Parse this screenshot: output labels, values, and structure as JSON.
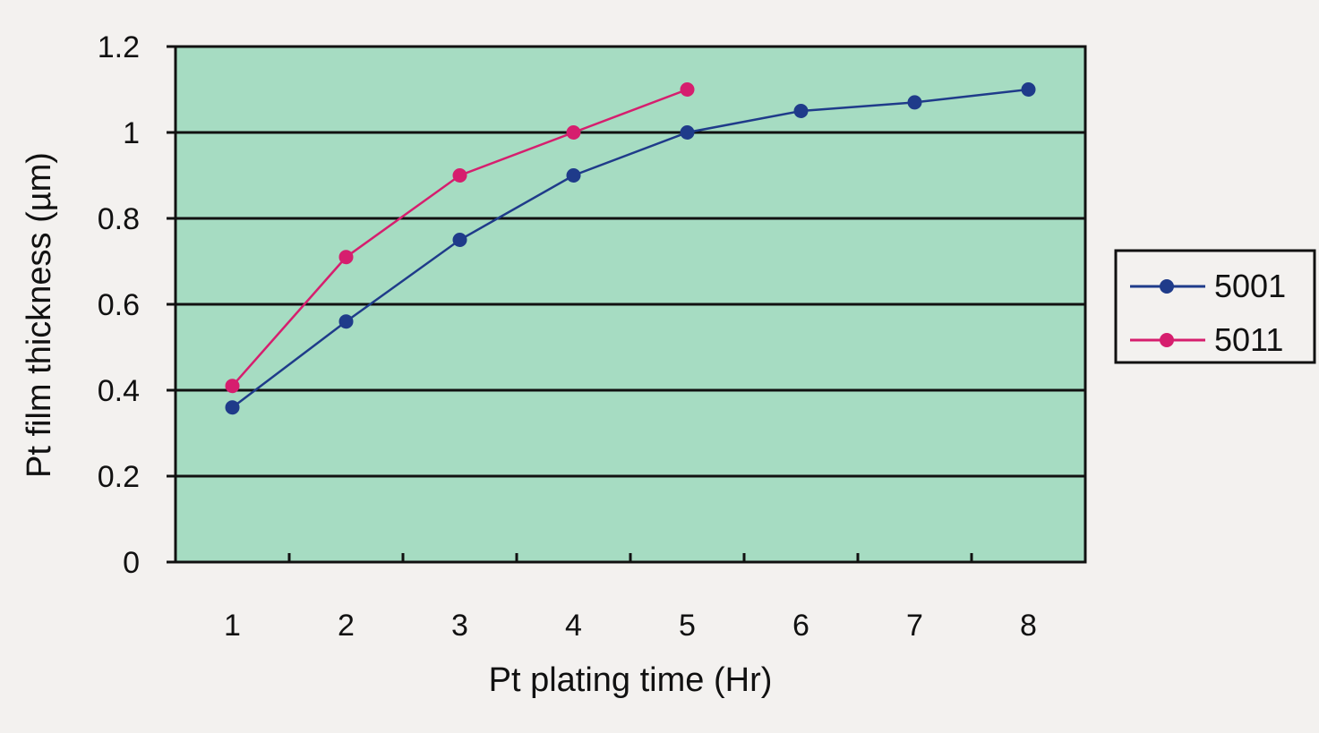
{
  "chart_data": {
    "type": "line",
    "title": "",
    "xlabel": "Pt plating time (Hr)",
    "ylabel": "Pt film thickness (µm)",
    "categories": [
      "1",
      "2",
      "3",
      "4",
      "5",
      "6",
      "7",
      "8"
    ],
    "y_ticks": [
      "0",
      "0.2",
      "0.4",
      "0.6",
      "0.8",
      "1",
      "1.2"
    ],
    "ylim": [
      0,
      1.2
    ],
    "grid": true,
    "legend_position": "right",
    "plot_background": "#a6dcc2",
    "series": [
      {
        "name": "5001",
        "color": "#1f3b8a",
        "values": [
          0.36,
          0.56,
          0.75,
          0.9,
          1.0,
          1.05,
          1.07,
          1.1
        ]
      },
      {
        "name": "5011",
        "color": "#d61e6e",
        "values": [
          0.41,
          0.71,
          0.9,
          1.0,
          1.1,
          null,
          null,
          null
        ]
      }
    ]
  }
}
